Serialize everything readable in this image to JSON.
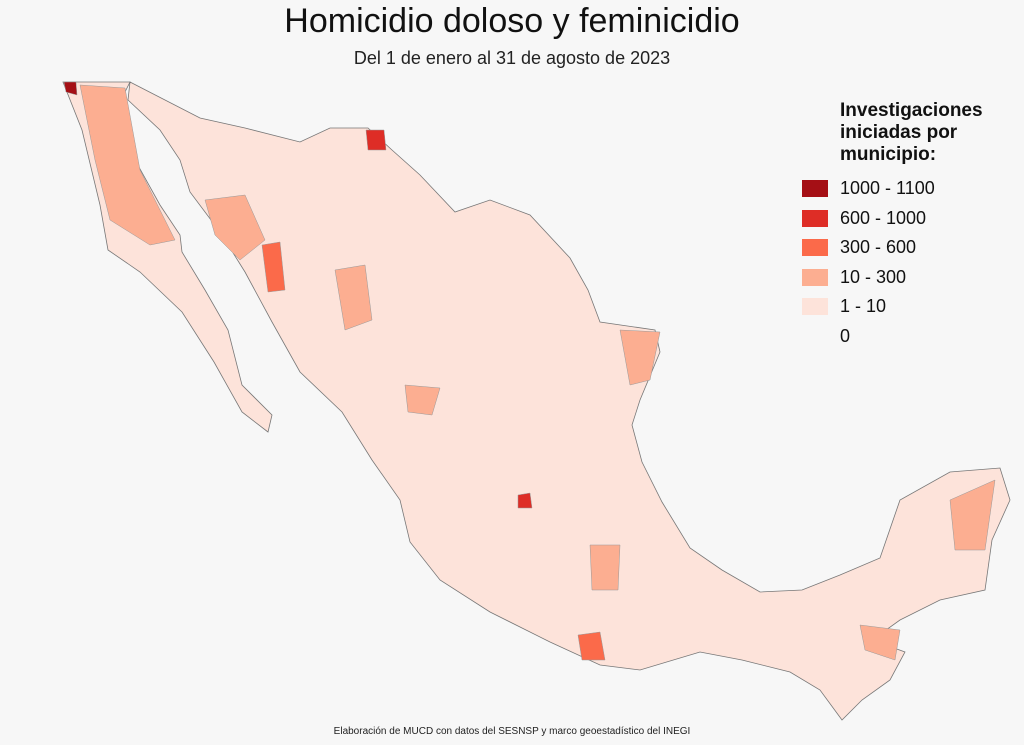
{
  "title": "Homicidio doloso y feminicidio",
  "subtitle": "Del 1 de enero al 31 de agosto de 2023",
  "legend": {
    "title": "Investigaciones iniciadas por municipio:",
    "items": [
      {
        "label": "1000 - 1100",
        "color": "#a50f15"
      },
      {
        "label": "600 - 1000",
        "color": "#de2d26"
      },
      {
        "label": "300 - 600",
        "color": "#fb6a4a"
      },
      {
        "label": "10 - 300",
        "color": "#fcae91"
      },
      {
        "label": "1 - 10",
        "color": "#fde3da"
      },
      {
        "label": "0"
      }
    ]
  },
  "source": "Elaboración de MUCD con datos del SESNSP y marco geoestadístico del INEGI"
}
